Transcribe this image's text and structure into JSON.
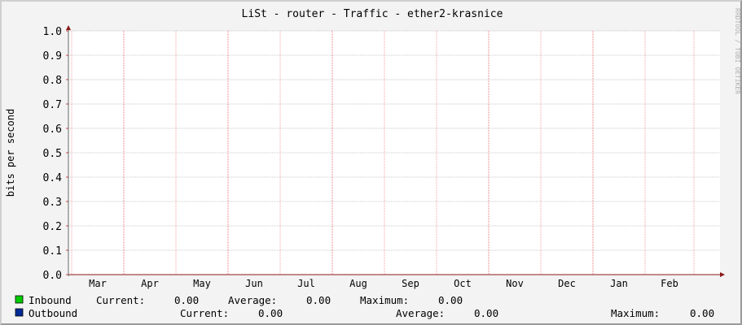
{
  "chart_data": {
    "type": "line",
    "title": "LiSt - router - Traffic - ether2-krasnice",
    "ylabel": "bits per second",
    "xlabel": "",
    "ylim": [
      0,
      1.0
    ],
    "y_ticks": [
      "0.0",
      "0.1",
      "0.2",
      "0.3",
      "0.4",
      "0.5",
      "0.6",
      "0.7",
      "0.8",
      "0.9",
      "1.0"
    ],
    "x_ticks": [
      "Mar",
      "Apr",
      "May",
      "Jun",
      "Jul",
      "Aug",
      "Sep",
      "Oct",
      "Nov",
      "Dec",
      "Jan",
      "Feb"
    ],
    "grid": true,
    "watermark": "RRDTOOL / TOBI OETIKER",
    "series": [
      {
        "name": "Inbound",
        "color": "#00cc00",
        "values": [],
        "current": "0.00",
        "average": "0.00",
        "maximum": "0.00"
      },
      {
        "name": "Outbound",
        "color": "#002a97",
        "values": [],
        "current": "0.00",
        "average": "0.00",
        "maximum": "0.00"
      }
    ],
    "legend_labels": {
      "current": "Current:",
      "average": "Average:",
      "maximum": "Maximum:"
    },
    "colors": {
      "grid": "#f4a0a0",
      "major_grid": "#e87070",
      "axis": "#8b1a1a",
      "canvas": "#ffffff",
      "background": "#f3f3f3"
    }
  }
}
